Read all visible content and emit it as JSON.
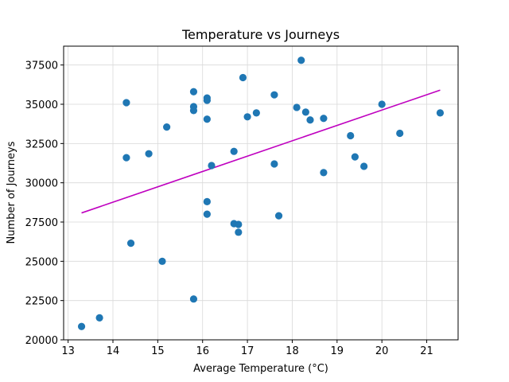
{
  "chart_data": {
    "type": "scatter",
    "title": "Temperature vs Journeys",
    "xlabel": "Average Temperature (°C)",
    "ylabel": "Number of Journeys",
    "xlim": [
      12.9,
      21.7
    ],
    "ylim": [
      20000,
      38700
    ],
    "xticks": [
      13,
      14,
      15,
      16,
      17,
      18,
      19,
      20,
      21
    ],
    "yticks": [
      20000,
      22500,
      25000,
      27500,
      30000,
      32500,
      35000,
      37500
    ],
    "grid": true,
    "point_color": "#1f77b4",
    "trend_color": "#bf00bf",
    "points": [
      {
        "x": 13.3,
        "y": 20850
      },
      {
        "x": 13.7,
        "y": 21400
      },
      {
        "x": 14.3,
        "y": 35100
      },
      {
        "x": 14.3,
        "y": 31600
      },
      {
        "x": 14.4,
        "y": 26150
      },
      {
        "x": 14.8,
        "y": 31850
      },
      {
        "x": 15.1,
        "y": 25000
      },
      {
        "x": 15.2,
        "y": 33550
      },
      {
        "x": 15.8,
        "y": 35800
      },
      {
        "x": 15.8,
        "y": 34850
      },
      {
        "x": 15.8,
        "y": 34600
      },
      {
        "x": 15.8,
        "y": 22600
      },
      {
        "x": 16.1,
        "y": 35400
      },
      {
        "x": 16.1,
        "y": 35250
      },
      {
        "x": 16.1,
        "y": 34050
      },
      {
        "x": 16.1,
        "y": 28800
      },
      {
        "x": 16.1,
        "y": 28000
      },
      {
        "x": 16.2,
        "y": 31100
      },
      {
        "x": 16.7,
        "y": 32000
      },
      {
        "x": 16.7,
        "y": 27400
      },
      {
        "x": 16.8,
        "y": 27350
      },
      {
        "x": 16.8,
        "y": 26850
      },
      {
        "x": 16.9,
        "y": 36700
      },
      {
        "x": 17.0,
        "y": 34200
      },
      {
        "x": 17.2,
        "y": 34450
      },
      {
        "x": 17.6,
        "y": 35600
      },
      {
        "x": 17.6,
        "y": 31200
      },
      {
        "x": 17.7,
        "y": 27900
      },
      {
        "x": 18.1,
        "y": 34800
      },
      {
        "x": 18.2,
        "y": 37800
      },
      {
        "x": 18.3,
        "y": 34500
      },
      {
        "x": 18.4,
        "y": 34000
      },
      {
        "x": 18.7,
        "y": 34100
      },
      {
        "x": 18.7,
        "y": 30650
      },
      {
        "x": 19.3,
        "y": 33000
      },
      {
        "x": 19.4,
        "y": 31650
      },
      {
        "x": 19.6,
        "y": 31050
      },
      {
        "x": 20.0,
        "y": 35000
      },
      {
        "x": 20.4,
        "y": 33150
      },
      {
        "x": 21.3,
        "y": 34450
      }
    ],
    "trendline": [
      {
        "x": 13.3,
        "y": 28080
      },
      {
        "x": 21.3,
        "y": 35900
      }
    ]
  }
}
